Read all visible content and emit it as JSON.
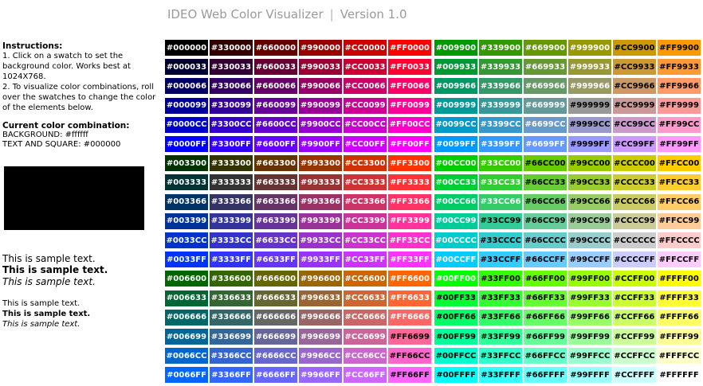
{
  "header": {
    "title": "IDEO Web Color Visualizer",
    "separator": "|",
    "version": "Version 1.0"
  },
  "instructions": {
    "title": "Instructions:",
    "line1": "1. Click on a swatch to set the background color. Works best at 1024X768.",
    "line2": "2. To visualize color combinations, roll over the swatches to change the color of the elements below."
  },
  "combination": {
    "title": "Current color combination:",
    "background": "BACKGROUND: #ffffff",
    "text_square": "TEXT AND SQUARE: #000000",
    "square_color": "#000000"
  },
  "samples": {
    "large_regular": "This is sample text.",
    "large_bold": "This is sample text.",
    "large_italic": "This is sample text.",
    "small_regular": "This is sample text.",
    "small_bold": "This is sample text.",
    "small_italic": "This is sample text."
  },
  "palette": {
    "levels": [
      "00",
      "33",
      "66",
      "99",
      "CC",
      "FF"
    ],
    "layout": "6 columns of red levels (00..FF) per half; rows grouped by green level, then blue level; right half starts at green 99",
    "swatches_shown": 216
  }
}
